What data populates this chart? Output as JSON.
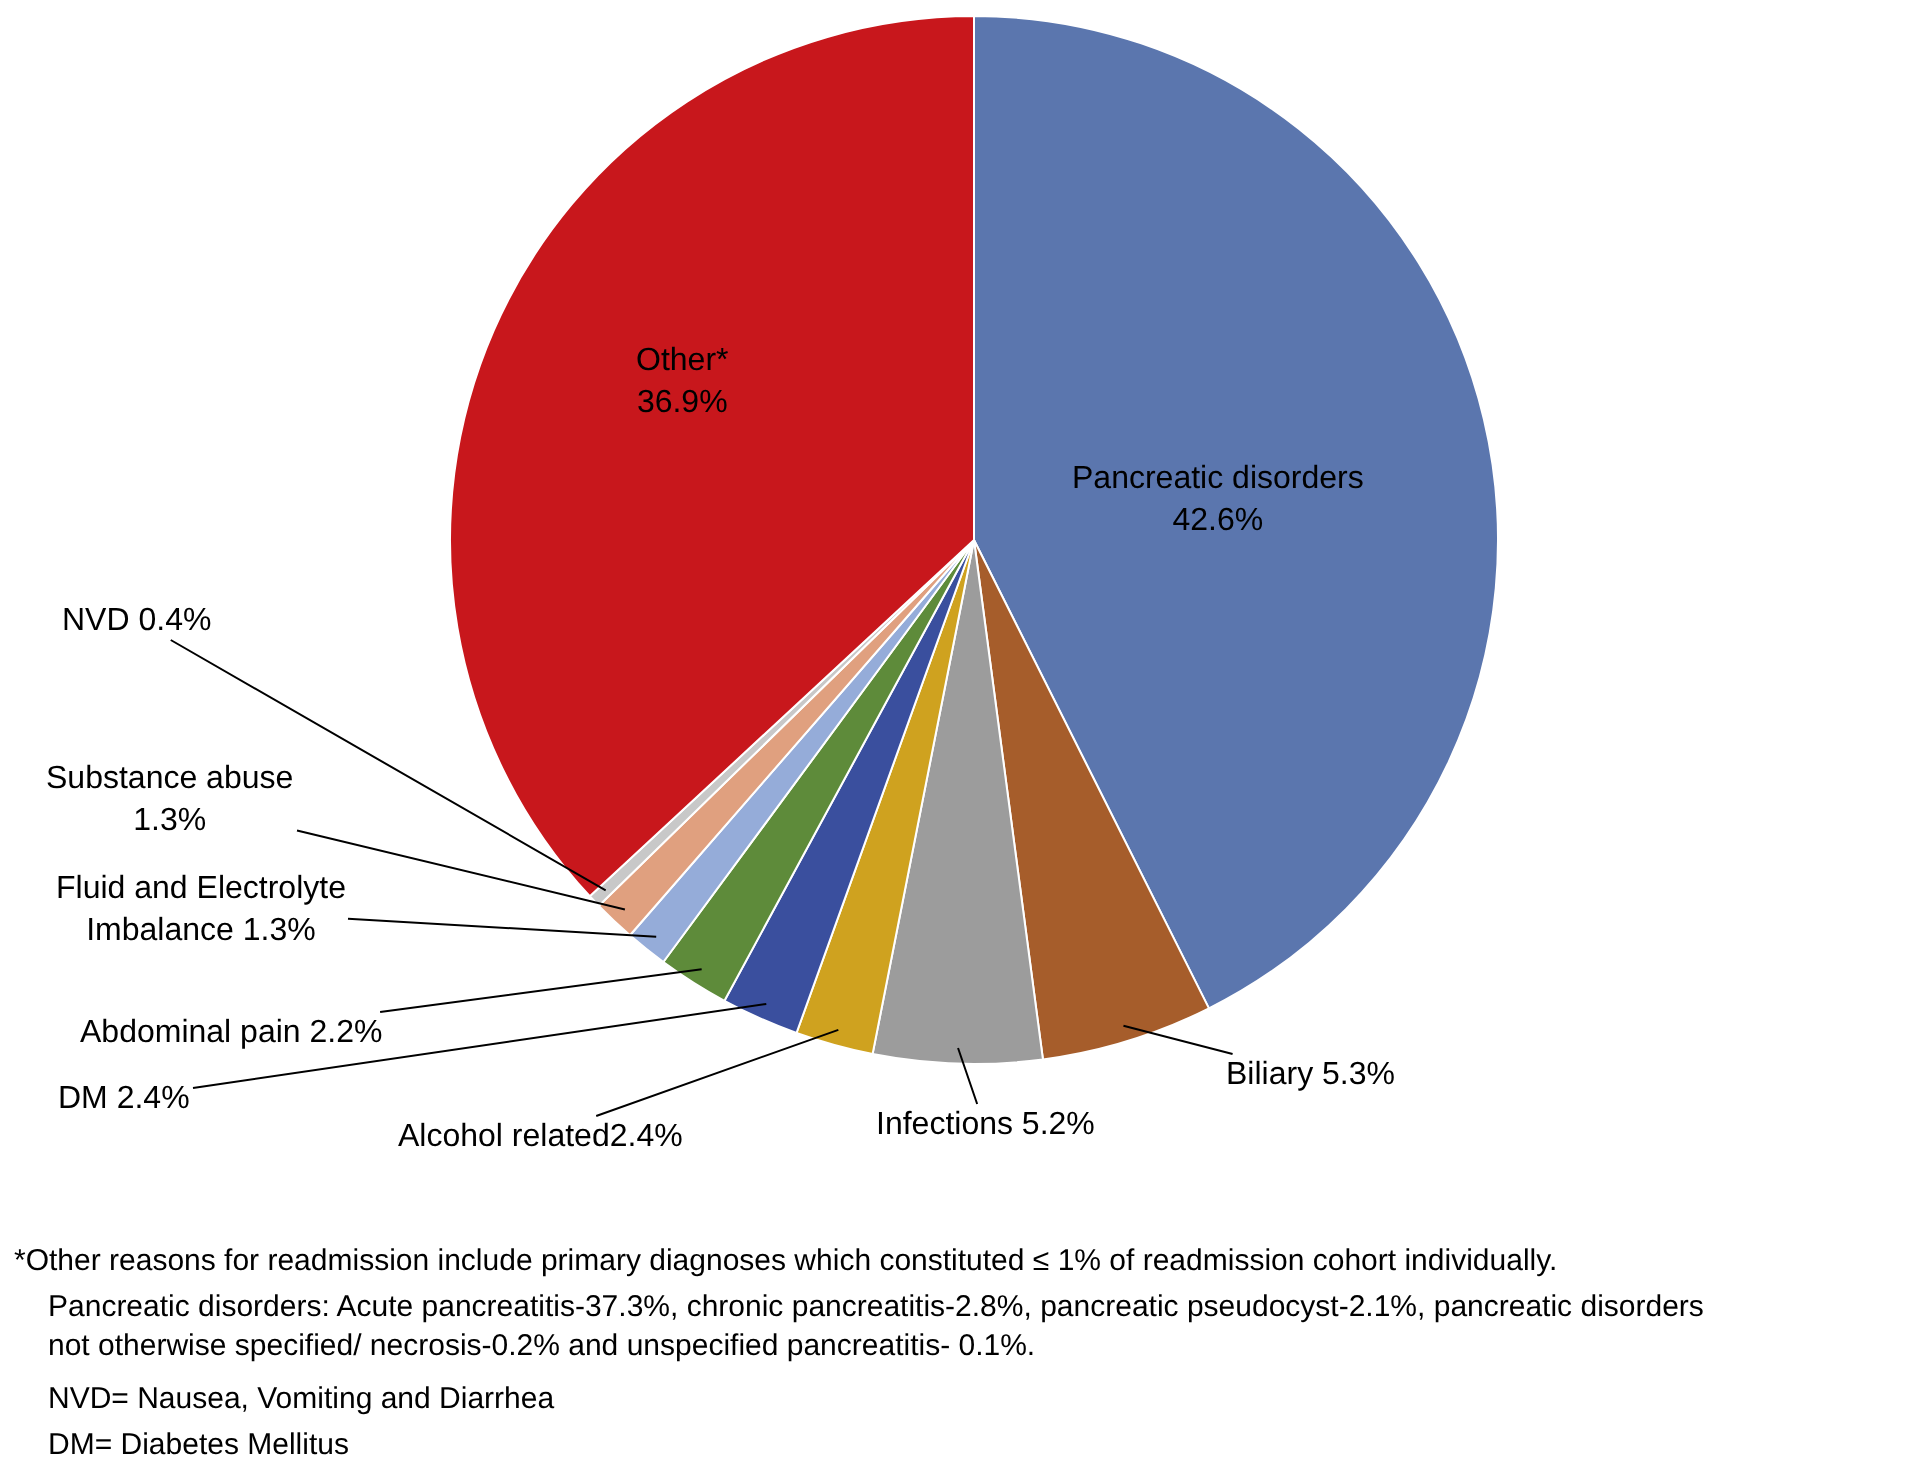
{
  "chart_data": {
    "type": "pie",
    "categories": [
      "Pancreatic disorders\n42.6%",
      "Biliary 5.3%",
      "Infections 5.2%",
      "Alcohol related2.4%",
      "DM 2.4%",
      "Abdominal pain 2.2%",
      "Fluid and Electrolyte\nImbalance 1.3%",
      "Substance abuse\n1.3%",
      "NVD 0.4%",
      "Other*\n36.9%"
    ],
    "values": [
      42.6,
      5.3,
      5.2,
      2.4,
      2.4,
      2.2,
      1.3,
      1.3,
      0.4,
      36.9
    ],
    "colors": [
      "#5b76ae",
      "#a65d2b",
      "#9c9c9c",
      "#cfa21f",
      "#3a4f9e",
      "#5e8b3a",
      "#95acd9",
      "#e0a07f",
      "#c8c8c8",
      "#c8171c"
    ],
    "annotations": [
      "*Other reasons for readmission include primary diagnoses which constituted ≤ 1% of readmission cohort individually.",
      "Pancreatic disorders: Acute pancreatitis-37.3%, chronic pancreatitis-2.8%, pancreatic pseudocyst-2.1%, pancreatic disorders\nnot otherwise specified/ necrosis-0.2% and unspecified pancreatitis- 0.1%.",
      "NVD= Nausea, Vomiting and Diarrhea",
      "DM= Diabetes Mellitus"
    ],
    "legend": false
  }
}
